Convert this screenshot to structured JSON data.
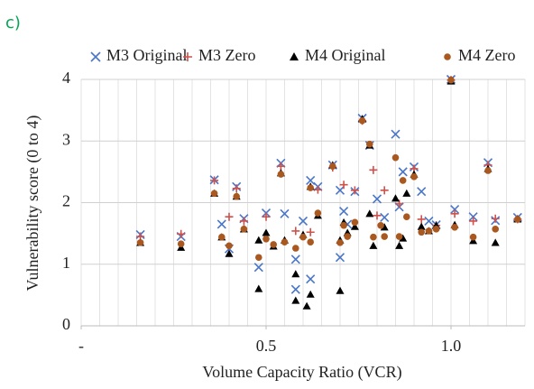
{
  "chart_data": {
    "type": "scatter",
    "title": "c)",
    "x_label": "Volume Capacity Ratio (VCR)",
    "y_label": "Vulnerability score (0 to 4)",
    "xlim": [
      0,
      1.2
    ],
    "xticks": [
      {
        "value": 0,
        "label": "-"
      },
      0.5,
      {
        "value": 1,
        "label": "1.0"
      }
    ],
    "ylim": [
      0,
      4
    ],
    "yticks": [
      0,
      1,
      2,
      3,
      4
    ],
    "grid": true,
    "x_minor_grid": 0.05,
    "legend": "top",
    "series": [
      {
        "name": "M3 Original",
        "color": "#4a76c8",
        "marker": "x",
        "x": [
          0.16,
          0.27,
          0.36,
          0.38,
          0.4,
          0.42,
          0.44,
          0.48,
          0.5,
          0.54,
          0.55,
          0.58,
          0.58,
          0.6,
          0.62,
          0.62,
          0.64,
          0.68,
          0.7,
          0.7,
          0.71,
          0.72,
          0.74,
          0.76,
          0.78,
          0.8,
          0.82,
          0.85,
          0.86,
          0.87,
          0.9,
          0.92,
          0.94,
          0.96,
          1.0,
          1.01,
          1.06,
          1.1,
          1.12,
          1.18
        ],
        "values": [
          1.48,
          1.45,
          2.37,
          1.65,
          1.25,
          2.26,
          1.74,
          0.95,
          1.83,
          2.64,
          1.82,
          1.08,
          0.59,
          1.7,
          0.76,
          2.36,
          2.26,
          2.61,
          2.2,
          1.11,
          1.86,
          1.65,
          2.18,
          3.37,
          2.93,
          2.06,
          1.76,
          3.11,
          1.93,
          2.5,
          2.58,
          2.18,
          1.7,
          1.64,
          4.0,
          1.89,
          1.77,
          2.65,
          1.71,
          1.76
        ]
      },
      {
        "name": "M3 Zero",
        "color": "#d0504a",
        "marker": "plus",
        "x": [
          0.16,
          0.27,
          0.36,
          0.4,
          0.42,
          0.44,
          0.5,
          0.54,
          0.58,
          0.62,
          0.64,
          0.68,
          0.71,
          0.74,
          0.76,
          0.79,
          0.8,
          0.82,
          0.86,
          0.9,
          0.92,
          0.96,
          1.0,
          1.01,
          1.06,
          1.1,
          1.12,
          1.18
        ],
        "values": [
          1.45,
          1.49,
          2.36,
          1.77,
          2.23,
          1.7,
          1.77,
          2.59,
          1.54,
          1.52,
          2.21,
          2.57,
          2.29,
          2.2,
          3.33,
          2.53,
          1.79,
          2.2,
          1.98,
          2.55,
          1.73,
          1.63,
          3.99,
          1.82,
          1.7,
          2.61,
          1.74,
          1.73
        ]
      },
      {
        "name": "M4 Original",
        "color": "#000000",
        "marker": "triangle",
        "x": [
          0.16,
          0.27,
          0.36,
          0.38,
          0.4,
          0.42,
          0.44,
          0.48,
          0.48,
          0.5,
          0.52,
          0.54,
          0.55,
          0.58,
          0.58,
          0.6,
          0.61,
          0.62,
          0.62,
          0.64,
          0.68,
          0.7,
          0.7,
          0.71,
          0.72,
          0.74,
          0.76,
          0.78,
          0.78,
          0.79,
          0.82,
          0.85,
          0.86,
          0.87,
          0.88,
          0.9,
          0.92,
          0.94,
          0.96,
          1.0,
          1.01,
          1.06,
          1.1,
          1.12,
          1.18
        ],
        "values": [
          1.35,
          1.27,
          2.15,
          1.44,
          1.17,
          2.1,
          1.57,
          0.6,
          1.39,
          1.51,
          1.29,
          2.48,
          1.39,
          0.41,
          0.84,
          1.48,
          0.32,
          0.51,
          2.26,
          1.79,
          2.61,
          0.57,
          1.39,
          1.68,
          1.51,
          1.61,
          3.36,
          2.93,
          1.82,
          1.3,
          1.6,
          2.07,
          1.3,
          1.42,
          2.15,
          2.46,
          1.61,
          1.54,
          1.63,
          3.97,
          1.64,
          1.38,
          2.55,
          1.35,
          1.73
        ]
      },
      {
        "name": "M4 Zero",
        "color": "#a9581f",
        "marker": "circle",
        "x": [
          0.16,
          0.27,
          0.36,
          0.38,
          0.4,
          0.42,
          0.44,
          0.48,
          0.5,
          0.52,
          0.54,
          0.55,
          0.58,
          0.6,
          0.62,
          0.62,
          0.64,
          0.68,
          0.7,
          0.71,
          0.72,
          0.74,
          0.76,
          0.78,
          0.79,
          0.81,
          0.82,
          0.85,
          0.86,
          0.87,
          0.88,
          0.9,
          0.92,
          0.94,
          0.96,
          1.0,
          1.01,
          1.06,
          1.1,
          1.12,
          1.18
        ],
        "values": [
          1.35,
          1.33,
          2.15,
          1.44,
          1.3,
          2.1,
          1.57,
          1.11,
          1.41,
          1.32,
          2.46,
          1.36,
          1.26,
          1.44,
          1.36,
          2.24,
          1.83,
          2.59,
          1.35,
          1.63,
          1.45,
          1.68,
          3.33,
          2.95,
          1.44,
          1.63,
          1.45,
          2.73,
          1.45,
          2.36,
          1.77,
          2.42,
          1.52,
          1.54,
          1.57,
          3.99,
          1.6,
          1.44,
          2.52,
          1.57,
          1.73
        ]
      }
    ]
  }
}
